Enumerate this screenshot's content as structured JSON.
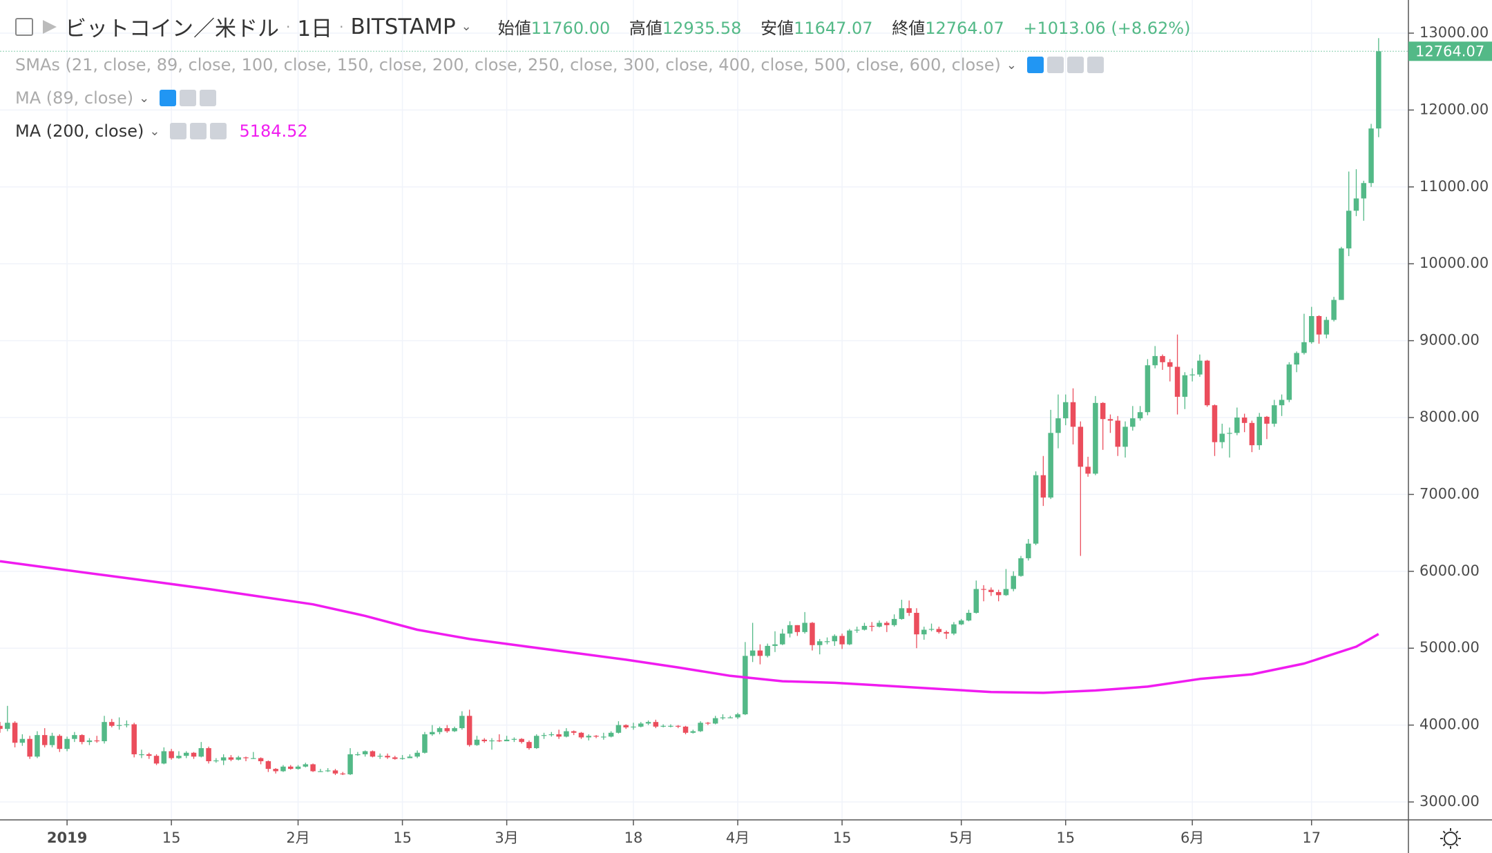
{
  "chart_data": {
    "type": "candlestick",
    "header": {
      "symbol": "ビットコイン／米ドル",
      "interval": "1日",
      "exchange": "BITSTAMP",
      "open_label": "始値",
      "open": "11760.00",
      "high_label": "高値",
      "high": "12935.58",
      "low_label": "安値",
      "low": "11647.07",
      "close_label": "終値",
      "close": "12764.07",
      "change": "+1013.06 (+8.62%)"
    },
    "indicators": [
      {
        "label": "SMAs (21, close, 89, close, 100, close, 150, close, 200, close, 250, close, 300, close, 400, close, 500, close, 600, close)"
      },
      {
        "label": "MA (89, close)"
      },
      {
        "label": "MA (200, close)",
        "value": "5184.52"
      }
    ],
    "last_price_label": "12764.07",
    "up_color": "#53b987",
    "down_color": "#eb4d5c",
    "grid": true,
    "xlim": [
      "2018-12-23",
      "2019-06-30"
    ],
    "ylim": [
      2767,
      13431
    ],
    "yticks": [
      {
        "value": 3000,
        "label": "3000.00"
      },
      {
        "value": 4000,
        "label": "4000.00"
      },
      {
        "value": 5000,
        "label": "5000.00"
      },
      {
        "value": 6000,
        "label": "6000.00"
      },
      {
        "value": 7000,
        "label": "7000.00"
      },
      {
        "value": 8000,
        "label": "8000.00"
      },
      {
        "value": 9000,
        "label": "9000.00"
      },
      {
        "value": 10000,
        "label": "10000.00"
      },
      {
        "value": 11000,
        "label": "11000.00"
      },
      {
        "value": 12000,
        "label": "12000.00"
      },
      {
        "value": 13000,
        "label": "13000.00"
      }
    ],
    "xticks": [
      {
        "value": "2019-01-01",
        "label": "2019"
      },
      {
        "value": "2019-01-15",
        "label": "15"
      },
      {
        "value": "2019-02-01",
        "label": "2月"
      },
      {
        "value": "2019-02-15",
        "label": "15"
      },
      {
        "value": "2019-03-01",
        "label": "3月"
      },
      {
        "value": "2019-03-18",
        "label": "18"
      },
      {
        "value": "2019-04-01",
        "label": "4月"
      },
      {
        "value": "2019-04-15",
        "label": "15"
      },
      {
        "value": "2019-05-01",
        "label": "5月"
      },
      {
        "value": "2019-05-15",
        "label": "15"
      },
      {
        "value": "2019-06-01",
        "label": "6月"
      },
      {
        "value": "2019-06-17",
        "label": "17"
      }
    ],
    "x": [
      "2018-12-23",
      "2018-12-24",
      "2018-12-25",
      "2018-12-26",
      "2018-12-27",
      "2018-12-28",
      "2018-12-29",
      "2018-12-30",
      "2018-12-31",
      "2019-01-01",
      "2019-01-02",
      "2019-01-03",
      "2019-01-04",
      "2019-01-05",
      "2019-01-06",
      "2019-01-07",
      "2019-01-08",
      "2019-01-09",
      "2019-01-10",
      "2019-01-11",
      "2019-01-12",
      "2019-01-13",
      "2019-01-14",
      "2019-01-15",
      "2019-01-16",
      "2019-01-17",
      "2019-01-18",
      "2019-01-19",
      "2019-01-20",
      "2019-01-21",
      "2019-01-22",
      "2019-01-23",
      "2019-01-24",
      "2019-01-25",
      "2019-01-26",
      "2019-01-27",
      "2019-01-28",
      "2019-01-29",
      "2019-01-30",
      "2019-01-31",
      "2019-02-01",
      "2019-02-02",
      "2019-02-03",
      "2019-02-04",
      "2019-02-05",
      "2019-02-06",
      "2019-02-07",
      "2019-02-08",
      "2019-02-09",
      "2019-02-10",
      "2019-02-11",
      "2019-02-12",
      "2019-02-13",
      "2019-02-14",
      "2019-02-15",
      "2019-02-16",
      "2019-02-17",
      "2019-02-18",
      "2019-02-19",
      "2019-02-20",
      "2019-02-21",
      "2019-02-22",
      "2019-02-23",
      "2019-02-24",
      "2019-02-25",
      "2019-02-26",
      "2019-02-27",
      "2019-02-28",
      "2019-03-01",
      "2019-03-02",
      "2019-03-03",
      "2019-03-04",
      "2019-03-05",
      "2019-03-06",
      "2019-03-07",
      "2019-03-08",
      "2019-03-09",
      "2019-03-10",
      "2019-03-11",
      "2019-03-12",
      "2019-03-13",
      "2019-03-14",
      "2019-03-15",
      "2019-03-16",
      "2019-03-17",
      "2019-03-18",
      "2019-03-19",
      "2019-03-20",
      "2019-03-21",
      "2019-03-22",
      "2019-03-23",
      "2019-03-24",
      "2019-03-25",
      "2019-03-26",
      "2019-03-27",
      "2019-03-28",
      "2019-03-29",
      "2019-03-30",
      "2019-03-31",
      "2019-04-01",
      "2019-04-02",
      "2019-04-03",
      "2019-04-04",
      "2019-04-05",
      "2019-04-06",
      "2019-04-07",
      "2019-04-08",
      "2019-04-09",
      "2019-04-10",
      "2019-04-11",
      "2019-04-12",
      "2019-04-13",
      "2019-04-14",
      "2019-04-15",
      "2019-04-16",
      "2019-04-17",
      "2019-04-18",
      "2019-04-19",
      "2019-04-20",
      "2019-04-21",
      "2019-04-22",
      "2019-04-23",
      "2019-04-24",
      "2019-04-25",
      "2019-04-26",
      "2019-04-27",
      "2019-04-28",
      "2019-04-29",
      "2019-04-30",
      "2019-05-01",
      "2019-05-02",
      "2019-05-03",
      "2019-05-04",
      "2019-05-05",
      "2019-05-06",
      "2019-05-07",
      "2019-05-08",
      "2019-05-09",
      "2019-05-10",
      "2019-05-11",
      "2019-05-12",
      "2019-05-13",
      "2019-05-14",
      "2019-05-15",
      "2019-05-16",
      "2019-05-17",
      "2019-05-18",
      "2019-05-19",
      "2019-05-20",
      "2019-05-21",
      "2019-05-22",
      "2019-05-23",
      "2019-05-24",
      "2019-05-25",
      "2019-05-26",
      "2019-05-27",
      "2019-05-28",
      "2019-05-29",
      "2019-05-30",
      "2019-05-31",
      "2019-06-01",
      "2019-06-02",
      "2019-06-03",
      "2019-06-04",
      "2019-06-05",
      "2019-06-06",
      "2019-06-07",
      "2019-06-08",
      "2019-06-09",
      "2019-06-10",
      "2019-06-11",
      "2019-06-12",
      "2019-06-13",
      "2019-06-14",
      "2019-06-15",
      "2019-06-16",
      "2019-06-17",
      "2019-06-18",
      "2019-06-19",
      "2019-06-20",
      "2019-06-21",
      "2019-06-22",
      "2019-06-23",
      "2019-06-24",
      "2019-06-25",
      "2019-06-26"
    ],
    "open": [
      3990,
      3950,
      4030,
      3770,
      3820,
      3590,
      3870,
      3740,
      3860,
      3690,
      3820,
      3870,
      3780,
      3800,
      3790,
      4040,
      3990,
      4000,
      4010,
      3620,
      3620,
      3600,
      3500,
      3660,
      3570,
      3600,
      3640,
      3590,
      3700,
      3530,
      3540,
      3580,
      3550,
      3580,
      3570,
      3570,
      3530,
      3430,
      3400,
      3460,
      3430,
      3460,
      3490,
      3400,
      3400,
      3410,
      3370,
      3360,
      3620,
      3620,
      3660,
      3590,
      3600,
      3580,
      3560,
      3570,
      3590,
      3640,
      3880,
      3910,
      3960,
      3920,
      3960,
      4120,
      3740,
      3810,
      3790,
      3800,
      3790,
      3810,
      3820,
      3780,
      3700,
      3860,
      3870,
      3880,
      3850,
      3920,
      3900,
      3840,
      3860,
      3850,
      3850,
      3900,
      4000,
      3970,
      3980,
      4020,
      4040,
      3980,
      3990,
      3990,
      3980,
      3900,
      3920,
      4030,
      4020,
      4090,
      4100,
      4100,
      4140,
      4900,
      4970,
      4900,
      5030,
      5050,
      5190,
      5300,
      5210,
      5330,
      5040,
      5090,
      5090,
      5160,
      5050,
      5230,
      5240,
      5290,
      5280,
      5330,
      5300,
      5380,
      5520,
      5460,
      5180,
      5240,
      5250,
      5210,
      5190,
      5310,
      5360,
      5460,
      5770,
      5760,
      5730,
      5690,
      5770,
      5940,
      6170,
      6360,
      7250,
      6960,
      7800,
      7990,
      8200,
      7880,
      7360,
      7270,
      8190,
      7980,
      7960,
      7620,
      7880,
      7990,
      8070,
      8680,
      8800,
      8720,
      8660,
      8270,
      8550,
      8560,
      8740,
      8160,
      7680,
      7790,
      7800,
      8000,
      7930,
      7640,
      8010,
      7920,
      8160,
      8230,
      8690,
      8840,
      8980,
      9320,
      9080,
      9270,
      9530,
      10200,
      10690,
      10850,
      11050,
      11760
    ],
    "high": [
      4040,
      4250,
      4050,
      3880,
      3860,
      3920,
      3960,
      3900,
      3880,
      3850,
      3910,
      3880,
      3830,
      3860,
      4120,
      4080,
      4100,
      4060,
      4030,
      3680,
      3640,
      3620,
      3710,
      3690,
      3660,
      3660,
      3650,
      3780,
      3720,
      3570,
      3620,
      3610,
      3600,
      3590,
      3650,
      3580,
      3540,
      3440,
      3480,
      3480,
      3480,
      3510,
      3500,
      3430,
      3440,
      3430,
      3390,
      3700,
      3650,
      3670,
      3670,
      3630,
      3630,
      3600,
      3610,
      3620,
      3670,
      3910,
      4000,
      3980,
      4000,
      3980,
      4180,
      4200,
      3860,
      3830,
      3830,
      3880,
      3860,
      3840,
      3830,
      3800,
      3880,
      3900,
      3910,
      3940,
      3960,
      3930,
      3910,
      3880,
      3870,
      3900,
      3920,
      4050,
      4010,
      4030,
      4040,
      4060,
      4070,
      4010,
      4010,
      4000,
      3990,
      3940,
      4050,
      4040,
      4120,
      4140,
      4120,
      4160,
      5080,
      5330,
      5050,
      5060,
      5220,
      5250,
      5350,
      5300,
      5470,
      5340,
      5120,
      5140,
      5180,
      5190,
      5250,
      5280,
      5330,
      5340,
      5360,
      5350,
      5440,
      5630,
      5620,
      5520,
      5280,
      5320,
      5280,
      5230,
      5340,
      5380,
      5500,
      5880,
      5820,
      5790,
      5760,
      6030,
      6000,
      6200,
      6420,
      7300,
      7500,
      8100,
      8300,
      8300,
      8380,
      7950,
      7490,
      8280,
      8200,
      8040,
      8020,
      7950,
      8150,
      8150,
      8760,
      8930,
      8820,
      8760,
      9080,
      8590,
      8640,
      8820,
      8750,
      8170,
      7920,
      7870,
      8130,
      8050,
      7960,
      8060,
      8020,
      8230,
      8300,
      8720,
      8860,
      9350,
      9440,
      9330,
      9310,
      9570,
      10220,
      11200,
      11230,
      11080,
      11820,
      12935.58
    ],
    "low": [
      3900,
      3920,
      3710,
      3730,
      3560,
      3570,
      3710,
      3710,
      3650,
      3660,
      3780,
      3750,
      3740,
      3770,
      3760,
      3970,
      3940,
      3970,
      3580,
      3570,
      3560,
      3480,
      3490,
      3550,
      3560,
      3570,
      3560,
      3580,
      3500,
      3510,
      3480,
      3530,
      3540,
      3530,
      3560,
      3490,
      3390,
      3370,
      3390,
      3420,
      3420,
      3450,
      3390,
      3390,
      3390,
      3350,
      3350,
      3350,
      3600,
      3590,
      3580,
      3560,
      3560,
      3550,
      3550,
      3570,
      3570,
      3630,
      3860,
      3880,
      3900,
      3910,
      3940,
      3720,
      3730,
      3770,
      3680,
      3780,
      3790,
      3780,
      3760,
      3680,
      3690,
      3820,
      3850,
      3820,
      3840,
      3870,
      3820,
      3800,
      3830,
      3810,
      3840,
      3890,
      3950,
      3940,
      3970,
      4000,
      3960,
      3970,
      3970,
      3960,
      3880,
      3890,
      3910,
      4000,
      4010,
      4070,
      4090,
      4080,
      4130,
      4820,
      4790,
      4880,
      4950,
      5040,
      5140,
      5160,
      5190,
      4970,
      4920,
      5050,
      5030,
      4990,
      5040,
      5200,
      5230,
      5220,
      5270,
      5210,
      5280,
      5370,
      5420,
      5000,
      5110,
      5220,
      5190,
      5120,
      5170,
      5300,
      5350,
      5450,
      5610,
      5680,
      5610,
      5680,
      5740,
      5930,
      6140,
      6340,
      6850,
      6940,
      7600,
      7900,
      7650,
      6200,
      7230,
      7250,
      7580,
      7800,
      7500,
      7480,
      7830,
      7960,
      8030,
      8640,
      8620,
      8470,
      8040,
      8110,
      8470,
      8530,
      8140,
      7500,
      7600,
      7480,
      7770,
      7810,
      7550,
      7580,
      7720,
      7880,
      8020,
      8200,
      8590,
      8820,
      8960,
      8960,
      9030,
      9250,
      9530,
      10100,
      10620,
      10560,
      11000,
      11647.07
    ],
    "close": [
      3950,
      4030,
      3770,
      3820,
      3590,
      3870,
      3740,
      3860,
      3690,
      3820,
      3870,
      3780,
      3800,
      3790,
      4040,
      3990,
      4000,
      4010,
      3620,
      3620,
      3600,
      3500,
      3660,
      3570,
      3600,
      3640,
      3590,
      3700,
      3530,
      3540,
      3580,
      3550,
      3580,
      3570,
      3570,
      3530,
      3430,
      3400,
      3460,
      3430,
      3460,
      3490,
      3400,
      3400,
      3410,
      3370,
      3360,
      3620,
      3620,
      3660,
      3590,
      3600,
      3580,
      3560,
      3570,
      3590,
      3640,
      3880,
      3910,
      3960,
      3920,
      3960,
      4120,
      3740,
      3810,
      3790,
      3800,
      3790,
      3810,
      3820,
      3780,
      3700,
      3860,
      3870,
      3880,
      3850,
      3920,
      3900,
      3840,
      3860,
      3850,
      3850,
      3900,
      4000,
      3970,
      3980,
      4020,
      4040,
      3980,
      3990,
      3990,
      3980,
      3900,
      3920,
      4030,
      4020,
      4090,
      4100,
      4100,
      4140,
      4900,
      4970,
      4900,
      5030,
      5050,
      5190,
      5300,
      5210,
      5330,
      5040,
      5090,
      5090,
      5160,
      5050,
      5230,
      5240,
      5290,
      5280,
      5330,
      5300,
      5380,
      5520,
      5460,
      5180,
      5240,
      5250,
      5210,
      5190,
      5310,
      5360,
      5460,
      5770,
      5760,
      5730,
      5690,
      5770,
      5940,
      6170,
      6360,
      7250,
      6960,
      7800,
      7990,
      8200,
      7880,
      7360,
      7270,
      8190,
      7980,
      7960,
      7620,
      7880,
      7990,
      8070,
      8680,
      8800,
      8720,
      8660,
      8270,
      8550,
      8560,
      8740,
      8160,
      7680,
      7790,
      7800,
      8000,
      7930,
      7640,
      8010,
      7920,
      8160,
      8230,
      8690,
      8840,
      8980,
      9320,
      9080,
      9270,
      9530,
      10200,
      10690,
      10850,
      11050,
      11760,
      12764.07
    ],
    "series": [
      {
        "name": "MA (200, close)",
        "color": "#f01cf0",
        "x": [
          "2018-12-23",
          "2018-12-30",
          "2019-01-06",
          "2019-01-13",
          "2019-01-20",
          "2019-01-27",
          "2019-02-03",
          "2019-02-10",
          "2019-02-17",
          "2019-02-24",
          "2019-03-03",
          "2019-03-10",
          "2019-03-17",
          "2019-03-24",
          "2019-03-31",
          "2019-04-07",
          "2019-04-14",
          "2019-04-21",
          "2019-04-28",
          "2019-05-05",
          "2019-05-12",
          "2019-05-19",
          "2019-05-26",
          "2019-06-02",
          "2019-06-09",
          "2019-06-16",
          "2019-06-23",
          "2019-06-26"
        ],
        "values": [
          6131,
          6040,
          5950,
          5860,
          5770,
          5670,
          5570,
          5420,
          5240,
          5120,
          5030,
          4940,
          4850,
          4750,
          4640,
          4570,
          4550,
          4510,
          4470,
          4430,
          4420,
          4450,
          4500,
          4600,
          4660,
          4800,
          5020,
          5184.52
        ]
      }
    ]
  }
}
